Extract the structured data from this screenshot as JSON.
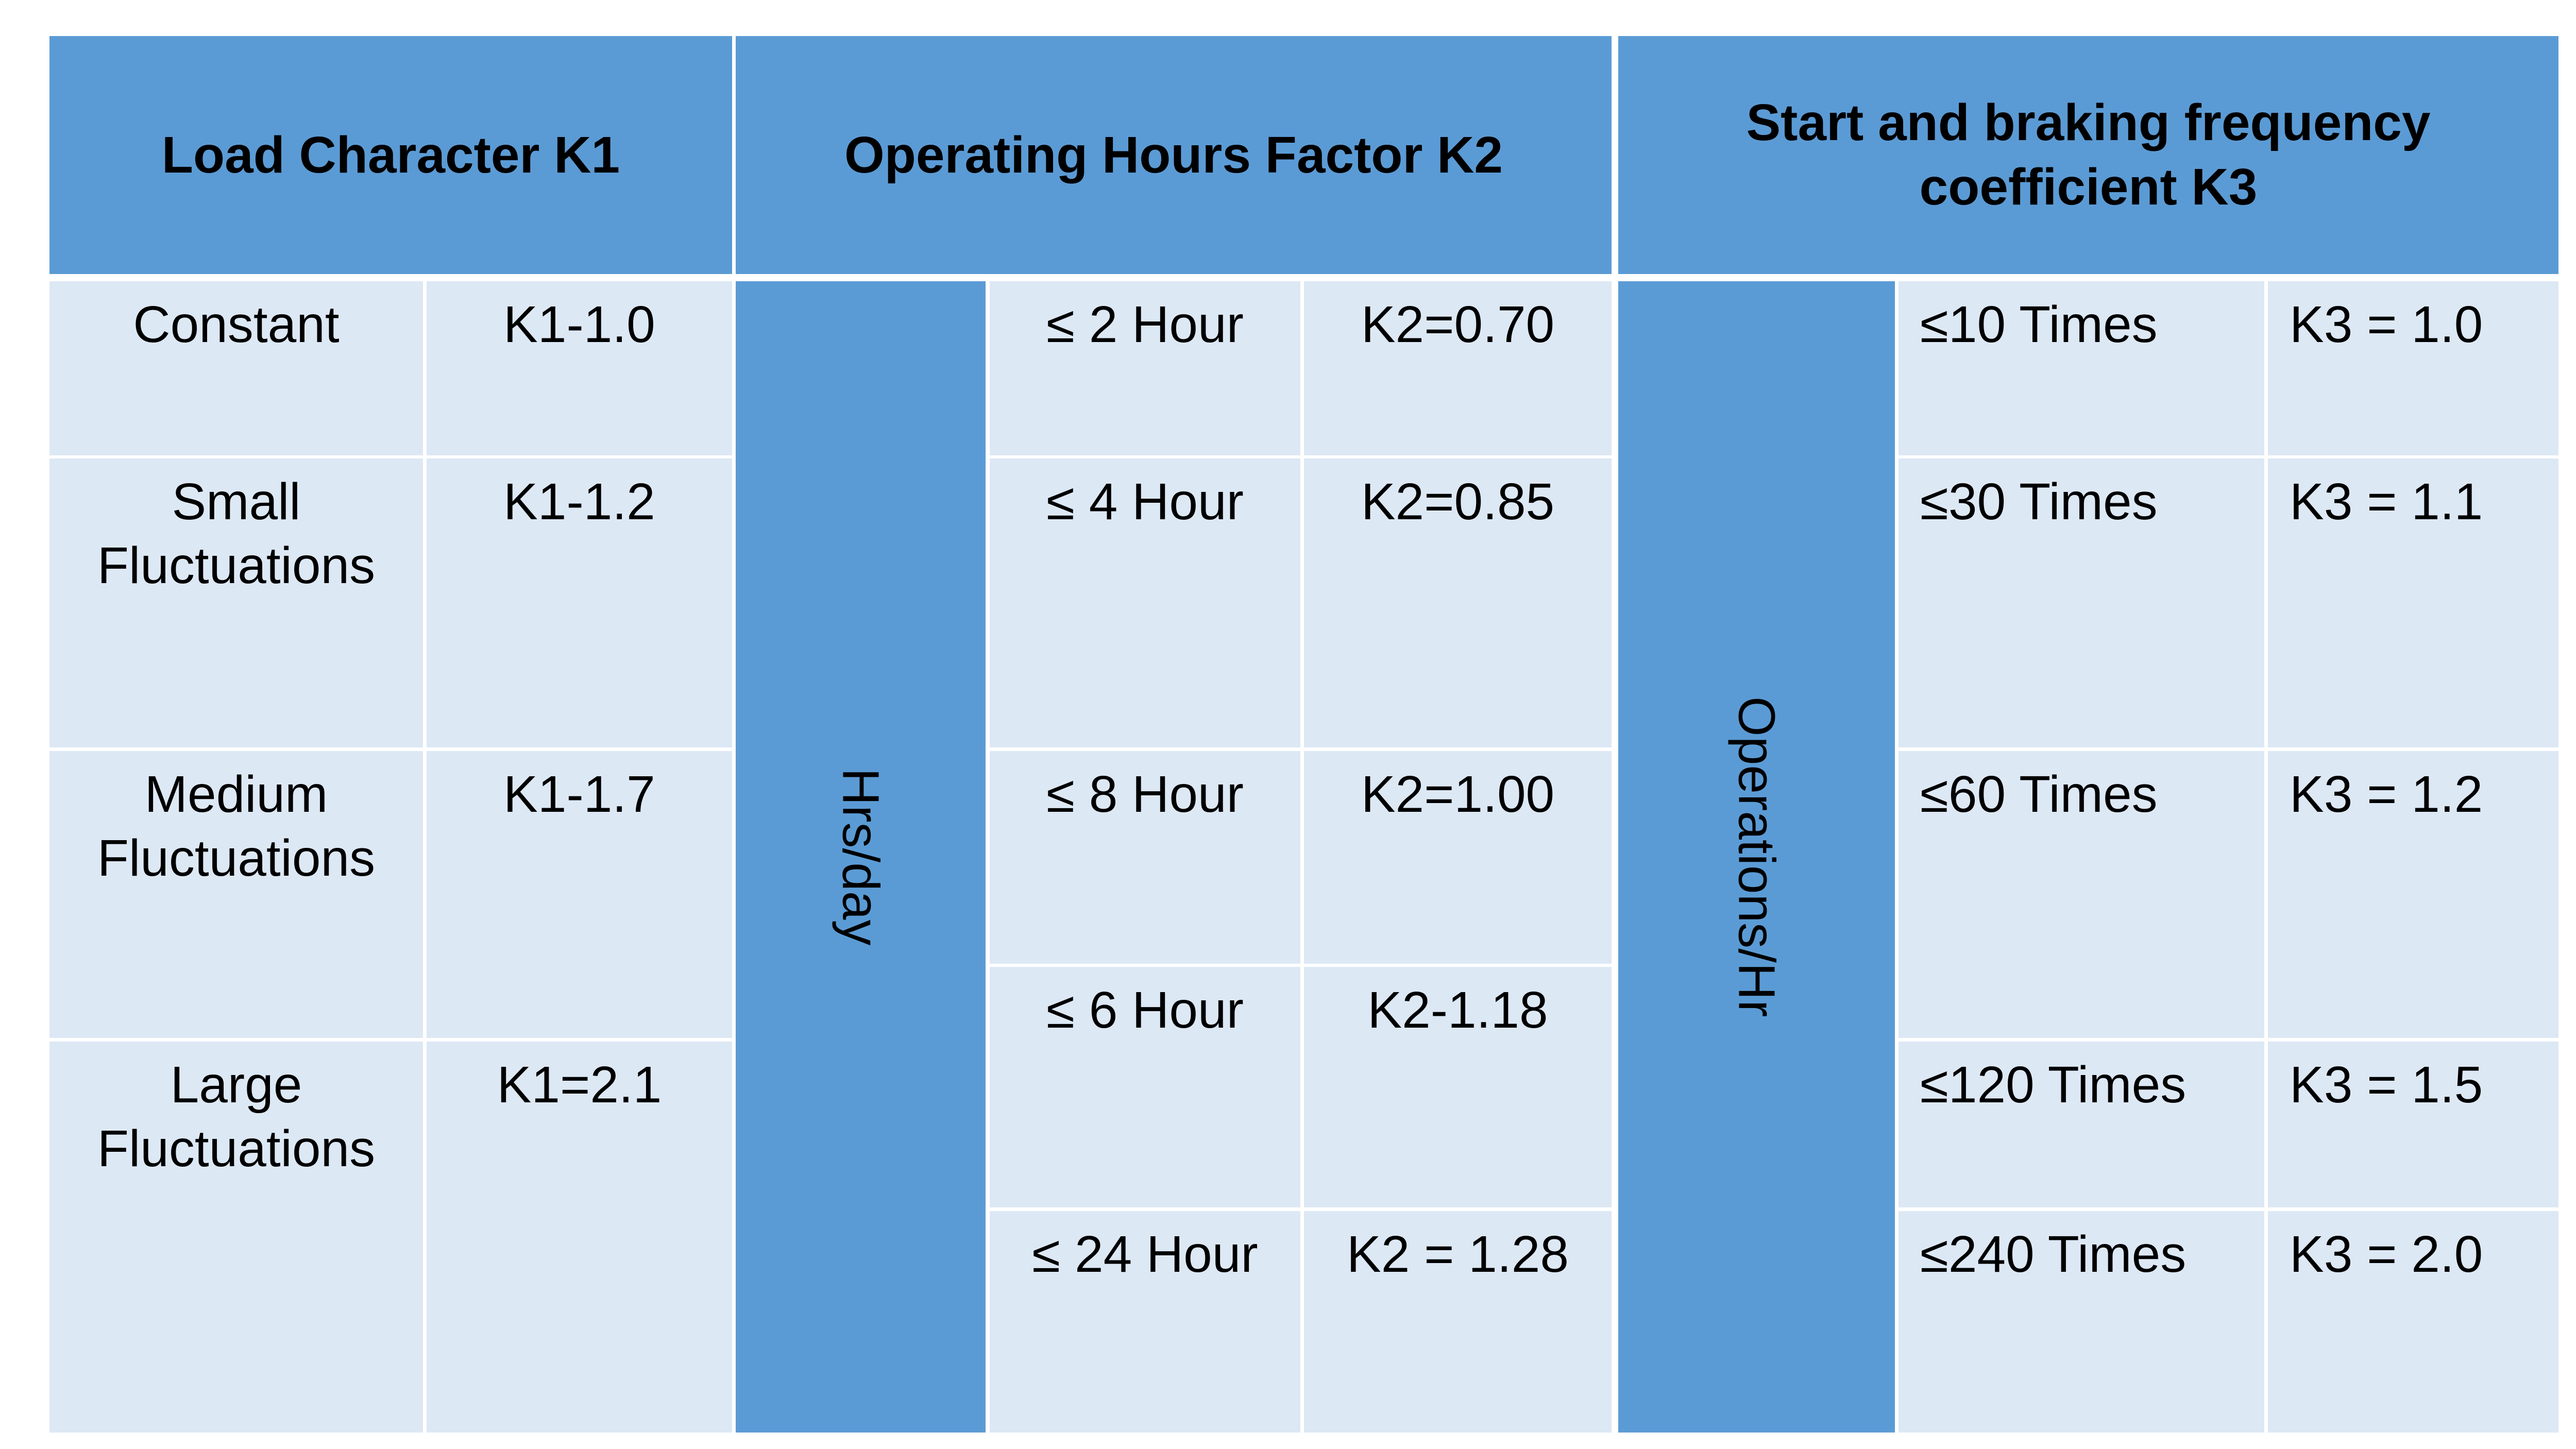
{
  "headers": {
    "k1": "Load Character K1",
    "k2": "Operating Hours Factor K2",
    "k3": "Start and braking frequency coefficient K3"
  },
  "k1_rows": [
    {
      "label": "Constant",
      "value": "K1-1.0"
    },
    {
      "label": "Small Fluctuations",
      "value": "K1-1.2"
    },
    {
      "label": "Medium Fluctuations",
      "value": "K1-1.7"
    },
    {
      "label": "Large Fluctuations",
      "value": "K1=2.1"
    }
  ],
  "k2_side_label": "Hrs/day",
  "k2_rows": [
    {
      "label": "≤ 2 Hour",
      "value": "K2=0.70"
    },
    {
      "label": "≤ 4 Hour",
      "value": "K2=0.85"
    },
    {
      "label": "≤ 8 Hour",
      "value": "K2=1.00"
    },
    {
      "label": "≤ 6 Hour",
      "value": "K2-1.18"
    },
    {
      "label": "≤ 24 Hour",
      "value": "K2 = 1.28"
    }
  ],
  "k3_side_label": "Operations/Hr",
  "k3_rows": [
    {
      "label": "≤10 Times",
      "value": "K3 = 1.0"
    },
    {
      "label": "≤30 Times",
      "value": "K3 = 1.1"
    },
    {
      "label": "≤60 Times",
      "value": "K3 = 1.2"
    },
    {
      "label": "≤120 Times",
      "value": "K3 = 1.5"
    },
    {
      "label": "≤240 Times",
      "value": "K3 = 2.0"
    }
  ],
  "colors": {
    "header_blue": "#5b9bd5",
    "cell_light_blue": "#dde8f5",
    "border_white": "#ffffff"
  }
}
